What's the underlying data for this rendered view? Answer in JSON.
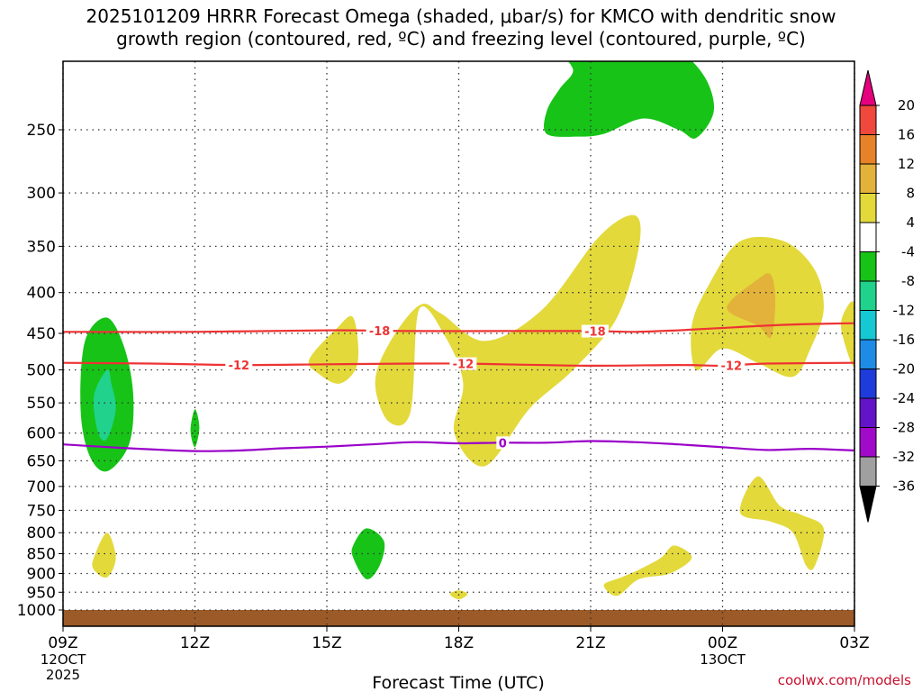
{
  "title": {
    "line1": "2025101209 HRRR Forecast Omega (shaded, μbar/s) for KMCO with dendritic snow",
    "line2": "growth region (contoured, red, ºC) and freezing level (contoured, purple, ºC)"
  },
  "credit": "coolwx.com/models",
  "chart_data": {
    "type": "heatmap",
    "xlabel": "Forecast Time (UTC)",
    "ylabel": "",
    "x_ticks": [
      {
        "hour": 0,
        "label": "09Z",
        "sub1": "12OCT",
        "sub2": "2025"
      },
      {
        "hour": 3,
        "label": "12Z",
        "sub1": "",
        "sub2": ""
      },
      {
        "hour": 6,
        "label": "15Z",
        "sub1": "",
        "sub2": ""
      },
      {
        "hour": 9,
        "label": "18Z",
        "sub1": "",
        "sub2": ""
      },
      {
        "hour": 12,
        "label": "21Z",
        "sub1": "",
        "sub2": ""
      },
      {
        "hour": 15,
        "label": "00Z",
        "sub1": "13OCT",
        "sub2": ""
      },
      {
        "hour": 18,
        "label": "03Z",
        "sub1": "",
        "sub2": ""
      }
    ],
    "xlim_hours": [
      0,
      18
    ],
    "y_axis_scale": "log pressure (hPa), inverted",
    "y_ticks": [
      250,
      300,
      350,
      400,
      450,
      500,
      550,
      600,
      650,
      700,
      750,
      800,
      850,
      900,
      950,
      1000
    ],
    "ylim_hPa": [
      1025,
      195
    ],
    "gridlines": "dotted at every tick",
    "colorbar": {
      "labels": [
        "20",
        "16",
        "12",
        "8",
        "4",
        "-4",
        "-8",
        "-12",
        "-16",
        "-20",
        "-24",
        "-28",
        "-32",
        "-36"
      ],
      "bins": [
        {
          "range": ">20",
          "color": "#e5007d"
        },
        {
          "range": "16 to 20",
          "color": "#f0483c"
        },
        {
          "range": "12 to 16",
          "color": "#e88228"
        },
        {
          "range": "8 to 12",
          "color": "#e3b23b"
        },
        {
          "range": "4 to 8",
          "color": "#e3d93b"
        },
        {
          "range": "-4 to 4",
          "color": "#ffffff"
        },
        {
          "range": "-8 to -4",
          "color": "#17c317"
        },
        {
          "range": "-12 to -8",
          "color": "#20d28c"
        },
        {
          "range": "-16 to -12",
          "color": "#16c8d2"
        },
        {
          "range": "-20 to -16",
          "color": "#1e8ce6"
        },
        {
          "range": "-24 to -20",
          "color": "#1e3cdc"
        },
        {
          "range": "-28 to -24",
          "color": "#6414c8"
        },
        {
          "range": "-32 to -28",
          "color": "#a00ac8"
        },
        {
          "range": "-36 to -32",
          "color": "#a0a0a0"
        },
        {
          "range": "<-36",
          "color": "#000000"
        }
      ]
    },
    "shaded_regions": [
      {
        "bin": "4 to 8",
        "color": "#e3d93b",
        "points": [
          [
            14.4,
            500
          ],
          [
            14.3,
            440
          ],
          [
            14.7,
            390
          ],
          [
            15.4,
            345
          ],
          [
            16.4,
            345
          ],
          [
            17.1,
            375
          ],
          [
            17.3,
            420
          ],
          [
            17.0,
            470
          ],
          [
            16.6,
            510
          ],
          [
            15.8,
            490
          ],
          [
            15.0,
            470
          ]
        ]
      },
      {
        "bin": "8 to 12",
        "color": "#e3b23b",
        "points": [
          [
            15.1,
            418
          ],
          [
            15.8,
            385
          ],
          [
            16.1,
            380
          ],
          [
            16.2,
            410
          ],
          [
            16.1,
            455
          ],
          [
            15.8,
            440
          ]
        ]
      },
      {
        "bin": "4 to 8",
        "color": "#e3d93b",
        "points": [
          [
            8.1,
            420
          ],
          [
            8.7,
            455
          ],
          [
            9.1,
            520
          ],
          [
            8.9,
            600
          ],
          [
            9.6,
            660
          ],
          [
            10.6,
            560
          ],
          [
            11.6,
            500
          ],
          [
            12.6,
            430
          ],
          [
            13.1,
            350
          ],
          [
            13.0,
            320
          ],
          [
            12.2,
            340
          ],
          [
            10.9,
            420
          ],
          [
            9.6,
            460
          ],
          [
            8.6,
            425
          ],
          [
            8.1,
            415
          ],
          [
            7.4,
            465
          ],
          [
            7.1,
            520
          ],
          [
            7.4,
            580
          ],
          [
            7.9,
            565
          ]
        ]
      },
      {
        "bin": "4 to 8",
        "color": "#e3d93b",
        "points": [
          [
            5.6,
            485
          ],
          [
            6.2,
            445
          ],
          [
            6.6,
            430
          ],
          [
            6.7,
            490
          ],
          [
            6.3,
            520
          ],
          [
            5.8,
            505
          ]
        ]
      },
      {
        "bin": "4 to 8",
        "color": "#e3d93b",
        "points": [
          [
            17.8,
            420
          ],
          [
            18.0,
            415
          ],
          [
            18.0,
            495
          ],
          [
            17.7,
            445
          ]
        ]
      },
      {
        "bin": "4 to 8",
        "color": "#e3d93b",
        "points": [
          [
            15.4,
            755
          ],
          [
            15.8,
            680
          ],
          [
            16.3,
            740
          ],
          [
            16.8,
            760
          ],
          [
            17.3,
            790
          ],
          [
            17.1,
            880
          ],
          [
            16.9,
            880
          ],
          [
            16.6,
            800
          ],
          [
            16.1,
            775
          ]
        ]
      },
      {
        "bin": "4 to 8",
        "color": "#e3d93b",
        "points": [
          [
            12.3,
            930
          ],
          [
            12.7,
            910
          ],
          [
            13.1,
            890
          ],
          [
            13.6,
            860
          ],
          [
            13.9,
            830
          ],
          [
            14.3,
            860
          ],
          [
            13.8,
            900
          ],
          [
            13.1,
            915
          ],
          [
            12.6,
            960
          ]
        ]
      },
      {
        "bin": "4 to 8",
        "color": "#e3d93b",
        "points": [
          [
            0.7,
            860
          ],
          [
            1.0,
            800
          ],
          [
            1.2,
            860
          ],
          [
            1.0,
            910
          ],
          [
            0.7,
            890
          ]
        ]
      },
      {
        "bin": "4 to 8",
        "color": "#e3d93b",
        "points": [
          [
            8.8,
            955
          ],
          [
            9.0,
            945
          ],
          [
            9.2,
            955
          ],
          [
            9.0,
            970
          ]
        ]
      },
      {
        "bin": "-8 to -4",
        "color": "#17c317",
        "points": [
          [
            1.0,
            430
          ],
          [
            0.5,
            460
          ],
          [
            0.4,
            560
          ],
          [
            0.6,
            640
          ],
          [
            1.0,
            670
          ],
          [
            1.5,
            620
          ],
          [
            1.6,
            540
          ],
          [
            1.4,
            470
          ]
        ]
      },
      {
        "bin": "-12 to -8",
        "color": "#20d28c",
        "points": [
          [
            1.0,
            500
          ],
          [
            0.7,
            540
          ],
          [
            0.8,
            600
          ],
          [
            1.0,
            610
          ],
          [
            1.2,
            560
          ],
          [
            1.1,
            520
          ]
        ]
      },
      {
        "bin": "-8 to -4",
        "color": "#17c317",
        "points": [
          [
            3.0,
            560
          ],
          [
            3.1,
            590
          ],
          [
            3.0,
            625
          ],
          [
            2.9,
            595
          ]
        ]
      },
      {
        "bin": "-8 to -4",
        "color": "#17c317",
        "points": [
          [
            6.6,
            830
          ],
          [
            6.9,
            790
          ],
          [
            7.3,
            820
          ],
          [
            7.2,
            880
          ],
          [
            6.9,
            915
          ],
          [
            6.6,
            860
          ]
        ]
      },
      {
        "bin": "-8 to -4",
        "color": "#17c317",
        "points": [
          [
            11.0,
            253
          ],
          [
            11.0,
            237
          ],
          [
            11.3,
            222
          ],
          [
            11.6,
            211
          ],
          [
            11.4,
            200
          ],
          [
            12.1,
            200
          ],
          [
            13.1,
            200
          ],
          [
            14.0,
            200
          ],
          [
            14.6,
            215
          ],
          [
            14.8,
            237
          ],
          [
            14.4,
            256
          ],
          [
            14.0,
            250
          ],
          [
            13.2,
            242
          ],
          [
            12.3,
            253
          ],
          [
            11.7,
            255
          ]
        ]
      }
    ],
    "contours": [
      {
        "name": "-18",
        "color": "#ee3333",
        "label_at_hours": [
          7.2,
          12.1
        ],
        "points": [
          [
            0,
            448
          ],
          [
            3,
            448
          ],
          [
            6,
            446
          ],
          [
            8,
            447
          ],
          [
            10,
            447
          ],
          [
            12,
            447
          ],
          [
            13,
            448
          ],
          [
            14,
            446
          ],
          [
            15,
            443
          ],
          [
            16,
            440
          ],
          [
            17,
            438
          ],
          [
            18,
            437
          ]
        ]
      },
      {
        "name": "-12",
        "color": "#ee3333",
        "label_at_hours": [
          4.0,
          9.1,
          15.2
        ],
        "points": [
          [
            0,
            490
          ],
          [
            2,
            491
          ],
          [
            4,
            493
          ],
          [
            6,
            492
          ],
          [
            8,
            491
          ],
          [
            9,
            491
          ],
          [
            10,
            492
          ],
          [
            12,
            494
          ],
          [
            14,
            493
          ],
          [
            15,
            494
          ],
          [
            16,
            491
          ],
          [
            18,
            490
          ]
        ]
      },
      {
        "name": "0",
        "color": "#9a00c8",
        "label_at_hours": [
          10.0
        ],
        "points": [
          [
            0,
            620
          ],
          [
            1.5,
            627
          ],
          [
            3,
            632
          ],
          [
            4,
            631
          ],
          [
            5,
            627
          ],
          [
            6,
            624
          ],
          [
            7,
            620
          ],
          [
            8,
            616
          ],
          [
            9,
            618
          ],
          [
            10,
            617
          ],
          [
            11,
            617
          ],
          [
            12,
            614
          ],
          [
            13,
            616
          ],
          [
            14,
            620
          ],
          [
            15,
            625
          ],
          [
            16,
            630
          ],
          [
            17,
            628
          ],
          [
            18,
            631
          ]
        ]
      }
    ],
    "surface_fill": {
      "color": "#9b5a28",
      "from_hPa": 1000
    }
  }
}
